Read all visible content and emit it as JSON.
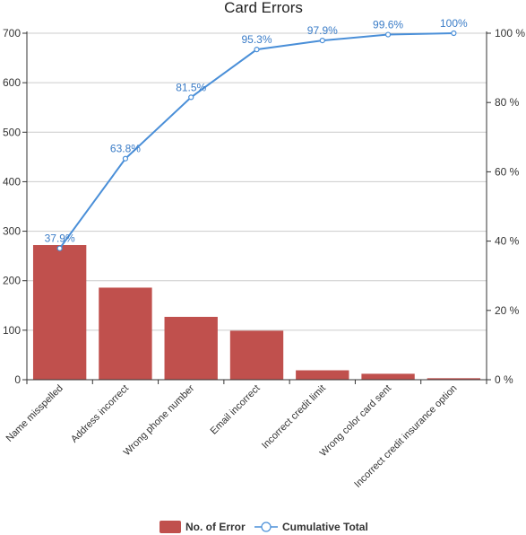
{
  "chart_data": {
    "type": "bar",
    "title": "Card Errors",
    "categories": [
      "Name misspelled",
      "Address incorrect",
      "Wrong phone number",
      "Email incorrect",
      "Incorrect credit limit",
      "Wrong color card sent",
      "Incorrect credit insurance option"
    ],
    "series": [
      {
        "name": "No. of Error",
        "type": "bar",
        "axis": "left",
        "values": [
          272,
          186,
          127,
          99,
          19,
          12,
          3
        ]
      },
      {
        "name": "Cumulative Total",
        "type": "line",
        "axis": "right",
        "values": [
          37.9,
          63.8,
          81.5,
          95.3,
          97.9,
          99.6,
          100
        ],
        "labels": [
          "37.9%",
          "63.8%",
          "81.5%",
          "95.3%",
          "97.9%",
          "99.6%",
          "100%"
        ]
      }
    ],
    "y_left": {
      "min": 0,
      "max": 700,
      "ticks": [
        "0",
        "100",
        "200",
        "300",
        "400",
        "500",
        "600",
        "700"
      ]
    },
    "y_right": {
      "min": 0,
      "max": 100,
      "ticks": [
        "0 %",
        "20 %",
        "40 %",
        "60 %",
        "80 %",
        "100 %"
      ]
    },
    "grid": true,
    "legend_position": "bottom",
    "colors": {
      "bar": "#c0504d",
      "line": "#4a8fd8",
      "label": "#3a7cc7",
      "grid": "#cccccc"
    }
  }
}
